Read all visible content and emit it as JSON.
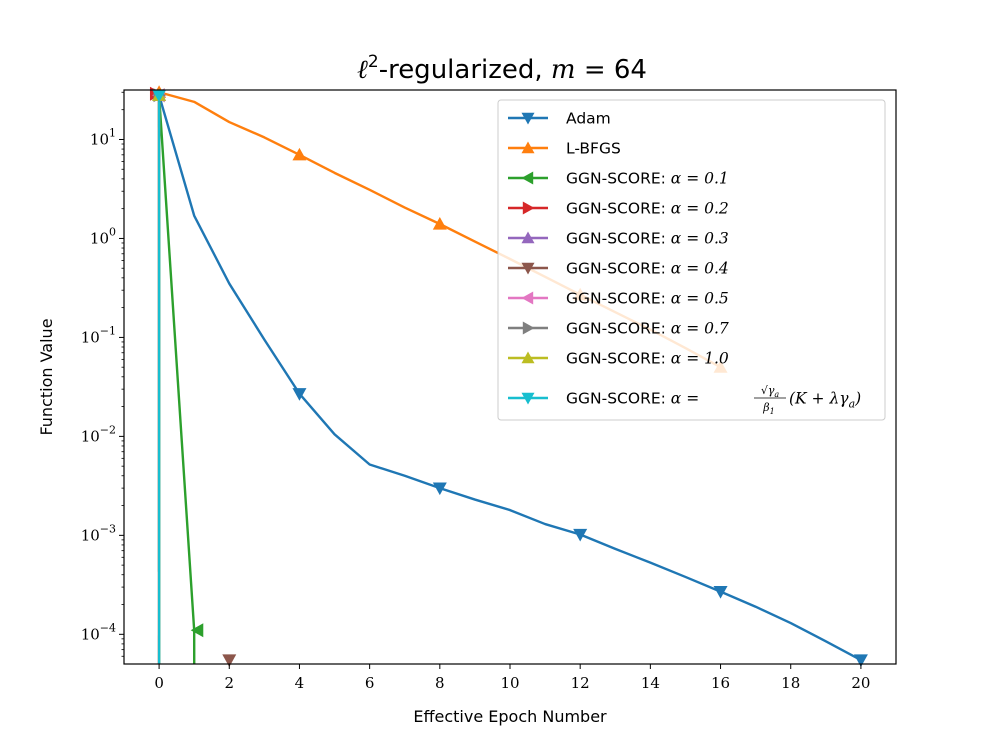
{
  "chart_data": {
    "type": "line",
    "title": "ℓ²-regularized, m = 64",
    "title_parts": {
      "ell": "ℓ",
      "sup": "2",
      "text": "-regularized, ",
      "var": "m",
      "eq": " = 64"
    },
    "xlabel": "Effective Epoch Number",
    "ylabel": "Function Value",
    "xlim": [
      -1,
      21
    ],
    "ylim_log10": [
      -4.3,
      1.5
    ],
    "y_scale": "log",
    "x_ticks": [
      0,
      2,
      4,
      6,
      8,
      10,
      12,
      14,
      16,
      18,
      20
    ],
    "x_tick_labels": [
      "0",
      "2",
      "4",
      "6",
      "8",
      "10",
      "12",
      "14",
      "16",
      "18",
      "20"
    ],
    "y_ticks_exp": [
      1,
      0,
      -1,
      -2,
      -3,
      -4
    ],
    "y_tick_base": "10",
    "y_tick_exps": [
      "1",
      "0",
      "−1",
      "−2",
      "−3",
      "−4"
    ],
    "legend_position": "top-right",
    "series": [
      {
        "name": "Adam",
        "legend_label": "Adam",
        "color": "#1f77b4",
        "marker": "triangle-down",
        "x": [
          0,
          1,
          2,
          3,
          4,
          5,
          6,
          7,
          8,
          9,
          10,
          11,
          12,
          13,
          14,
          15,
          16,
          17,
          18,
          19,
          20
        ],
        "y": [
          28,
          1.7,
          0.35,
          0.095,
          0.027,
          0.0105,
          0.0052,
          0.004,
          0.003,
          0.0023,
          0.0018,
          0.0013,
          0.00102,
          0.00073,
          0.00053,
          0.00038,
          0.00027,
          0.00019,
          0.00013,
          8.5e-05,
          5.5e-05
        ],
        "marker_x": [
          0,
          4,
          8,
          12,
          16,
          20
        ]
      },
      {
        "name": "L-BFGS",
        "legend_label": "L-BFGS",
        "color": "#ff7f0e",
        "marker": "triangle-up",
        "x": [
          0,
          1,
          2,
          3,
          4,
          5,
          6,
          7,
          8,
          9,
          10,
          11,
          12,
          13,
          14,
          15,
          16
        ],
        "y": [
          30,
          24,
          15,
          10.5,
          7.0,
          4.6,
          3.1,
          2.05,
          1.4,
          0.93,
          0.62,
          0.41,
          0.27,
          0.18,
          0.12,
          0.078,
          0.05
        ],
        "marker_x": [
          0,
          4,
          8,
          12,
          16
        ]
      },
      {
        "name": "GGN-SCORE α = 0.1",
        "legend_prefix": "GGN-SCORE: ",
        "legend_math": "α = 0.1",
        "color": "#2ca02c",
        "marker": "triangle-left",
        "x": [
          0,
          1,
          1.001
        ],
        "y": [
          28,
          0.00011,
          5e-05
        ],
        "marker_points": [
          [
            0,
            28
          ],
          [
            1.1,
            0.00011
          ]
        ]
      },
      {
        "name": "GGN-SCORE α = 0.2",
        "legend_prefix": "GGN-SCORE: ",
        "legend_math": "α = 0.2",
        "color": "#d62728",
        "marker": "triangle-right",
        "x": [
          0,
          0.001
        ],
        "y": [
          28,
          5e-05
        ],
        "marker_points": [
          [
            -0.1,
            29
          ]
        ]
      },
      {
        "name": "GGN-SCORE α = 0.3",
        "legend_prefix": "GGN-SCORE: ",
        "legend_math": "α = 0.3",
        "color": "#9467bd",
        "marker": "triangle-up",
        "x": [
          0,
          0.001
        ],
        "y": [
          28,
          5e-05
        ],
        "marker_points": [
          [
            0,
            28
          ]
        ]
      },
      {
        "name": "GGN-SCORE α = 0.4",
        "legend_prefix": "GGN-SCORE: ",
        "legend_math": "α = 0.4",
        "color": "#8c564b",
        "marker": "triangle-down",
        "x": [
          0,
          0.001
        ],
        "y": [
          28,
          5e-05
        ],
        "marker_points": [
          [
            0,
            28
          ],
          [
            2,
            5.5e-05
          ]
        ]
      },
      {
        "name": "GGN-SCORE α = 0.5",
        "legend_prefix": "GGN-SCORE: ",
        "legend_math": "α = 0.5",
        "color": "#e377c2",
        "marker": "triangle-left",
        "x": [
          0,
          0.001
        ],
        "y": [
          28,
          5e-05
        ],
        "marker_points": [
          [
            0,
            28
          ]
        ]
      },
      {
        "name": "GGN-SCORE α = 0.7",
        "legend_prefix": "GGN-SCORE: ",
        "legend_math": "α = 0.7",
        "color": "#7f7f7f",
        "marker": "triangle-right",
        "x": [
          0,
          0.001
        ],
        "y": [
          28,
          5e-05
        ],
        "marker_points": [
          [
            0,
            28
          ]
        ]
      },
      {
        "name": "GGN-SCORE α = 1.0",
        "legend_prefix": "GGN-SCORE: ",
        "legend_math": "α = 1.0",
        "color": "#bcbd22",
        "marker": "triangle-up",
        "x": [
          0,
          0.001
        ],
        "y": [
          28,
          5e-05
        ],
        "marker_points": [
          [
            0,
            28
          ]
        ]
      },
      {
        "name": "GGN-SCORE α = (√γa/β1)(K + λγa)",
        "legend_prefix": "GGN-SCORE: ",
        "legend_math": "α = ",
        "legend_frac_num": "√γ",
        "legend_frac_num_sub": "a",
        "legend_frac_den": "β",
        "legend_frac_den_sub": "1",
        "legend_tail": "(K + λγ",
        "legend_tail_sub": "a",
        "legend_tail_end": ")",
        "color": "#17becf",
        "marker": "triangle-down",
        "x": [
          0,
          0.001
        ],
        "y": [
          28,
          5e-05
        ],
        "marker_points": [
          [
            0,
            28
          ]
        ]
      }
    ]
  }
}
